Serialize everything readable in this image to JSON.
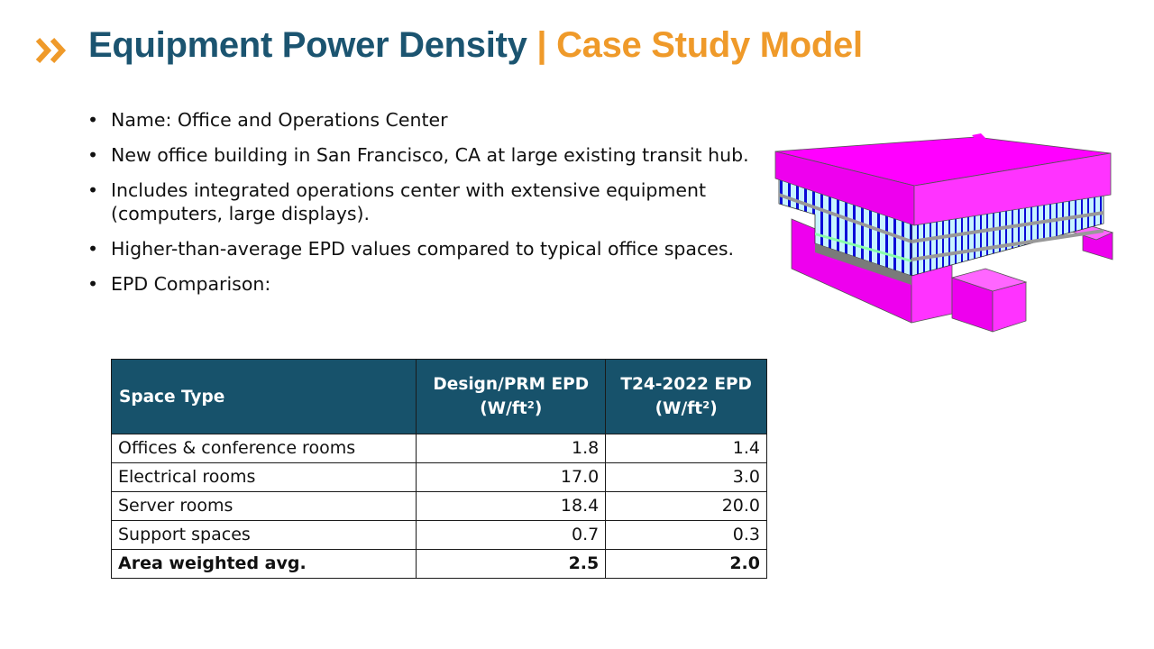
{
  "header": {
    "title_main": "Equipment Power Density",
    "title_sub": "| Case Study Model",
    "accent_color": "#ef9a2a",
    "brand_color": "#1b5470"
  },
  "bullets": [
    "Name: Office and Operations Center",
    "New office building in San Francisco, CA at large existing transit hub.",
    "Includes integrated operations center with extensive equipment (computers, large displays).",
    "Higher-than-average EPD values compared to typical office spaces.",
    "EPD Comparison:"
  ],
  "table": {
    "header_color": "#17526b",
    "headers": [
      "Space Type",
      "Design/PRM EPD",
      "T24-2022 EPD"
    ],
    "header_units": [
      "",
      "(W/ft²)",
      "(W/ft²)"
    ],
    "rows": [
      [
        "Offices & conference rooms",
        "1.8",
        "1.4"
      ],
      [
        "Electrical rooms",
        "17.0",
        "3.0"
      ],
      [
        "Server rooms",
        "18.4",
        "20.0"
      ],
      [
        "Support spaces",
        "0.7",
        "0.3"
      ],
      [
        "Area weighted avg.",
        "2.5",
        "2.0"
      ]
    ]
  },
  "image": {
    "icon": "building-3d-model",
    "colors": [
      "#ff00ff",
      "#0000e0",
      "#c8f4ff"
    ]
  }
}
